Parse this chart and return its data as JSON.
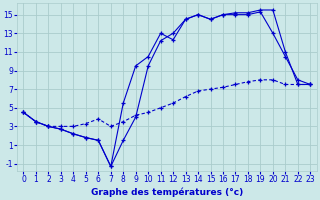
{
  "xlabel": "Graphe des températures (°c)",
  "background_color": "#cce8e8",
  "grid_color": "#aacccc",
  "line_color": "#0000cc",
  "xlim": [
    -0.5,
    23.5
  ],
  "ylim": [
    -1.8,
    16.2
  ],
  "xticks": [
    0,
    1,
    2,
    3,
    4,
    5,
    6,
    7,
    8,
    9,
    10,
    11,
    12,
    13,
    14,
    15,
    16,
    17,
    18,
    19,
    20,
    21,
    22,
    23
  ],
  "yticks": [
    -1,
    1,
    3,
    5,
    7,
    9,
    11,
    13,
    15
  ],
  "line1_x": [
    0,
    1,
    2,
    3,
    4,
    5,
    6,
    7,
    8,
    9,
    10,
    11,
    12,
    13,
    14,
    15,
    16,
    17,
    18,
    19,
    20,
    21,
    22,
    23
  ],
  "line1_y": [
    4.5,
    3.5,
    3.0,
    2.7,
    2.2,
    1.8,
    1.5,
    -1.3,
    1.5,
    4.0,
    9.5,
    12.2,
    13.0,
    14.5,
    15.0,
    14.5,
    15.0,
    15.0,
    15.0,
    15.3,
    13.0,
    10.5,
    8.0,
    7.5
  ],
  "line2_x": [
    0,
    1,
    2,
    3,
    4,
    5,
    6,
    7,
    8,
    9,
    10,
    11,
    12,
    13,
    14,
    15,
    16,
    17,
    18,
    19,
    20,
    21,
    22,
    23
  ],
  "line2_y": [
    4.5,
    3.5,
    3.0,
    2.7,
    2.2,
    1.8,
    1.5,
    -1.3,
    5.5,
    9.5,
    10.5,
    13.0,
    12.3,
    14.5,
    15.0,
    14.5,
    15.0,
    15.2,
    15.2,
    15.5,
    15.5,
    11.0,
    7.5,
    7.5
  ],
  "line3_x": [
    0,
    1,
    2,
    3,
    4,
    5,
    6,
    7,
    8,
    9,
    10,
    11,
    12,
    13,
    14,
    15,
    16,
    17,
    18,
    19,
    20,
    21,
    22,
    23
  ],
  "line3_y": [
    4.5,
    3.5,
    3.0,
    3.0,
    3.0,
    3.3,
    3.8,
    3.0,
    3.5,
    4.2,
    4.5,
    5.0,
    5.5,
    6.2,
    6.8,
    7.0,
    7.2,
    7.5,
    7.8,
    8.0,
    8.0,
    7.5,
    7.5,
    7.5
  ],
  "tick_fontsize": 5.5,
  "xlabel_fontsize": 6.5
}
